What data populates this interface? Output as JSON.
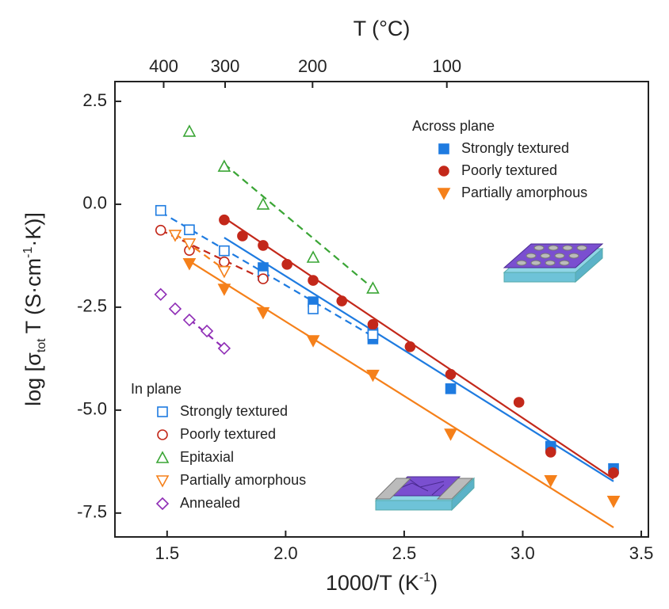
{
  "chart_data": {
    "type": "scatter",
    "xlabel": [
      {
        "text": "1000/T (K"
      },
      {
        "text": "-1",
        "shift": "super"
      },
      {
        "text": ")"
      }
    ],
    "ylabel": [
      {
        "text": "log [σ"
      },
      {
        "text": "tot",
        "shift": "sub"
      },
      {
        "text": "T (S·cm"
      },
      {
        "text": "-1",
        "shift": "super"
      },
      {
        "text": "·K)]"
      }
    ],
    "top_xlabel": "T (°C)",
    "top_xticks": [
      400,
      300,
      200,
      100
    ],
    "xlim": [
      1.28,
      3.53
    ],
    "ylim": [
      -8.08,
      2.98
    ],
    "xticks": [
      1.5,
      {
        "value": 2,
        "label": "2.0"
      },
      2.5,
      {
        "value": 3,
        "label": "3.0"
      },
      3.5
    ],
    "yticks": [
      2.5,
      {
        "value": 0,
        "label": "0.0"
      },
      -2.5,
      {
        "value": -5,
        "label": "-5.0"
      },
      -7.5
    ],
    "series_groups": [
      {
        "title": "Across plane",
        "legend_position": "upper right",
        "line_style": "solid",
        "series": [
          {
            "name": "Strongly textured",
            "color": "#1e7be0",
            "marker": "square",
            "filled": true,
            "x": [
              1.905,
              2.116,
              2.368,
              2.368,
              2.696,
              3.118,
              3.383
            ],
            "values": [
              -1.54,
              -2.37,
              -3.27,
              -3.12,
              -4.48,
              -5.88,
              -6.42
            ],
            "fit_x": [
              1.741,
              3.383
            ],
            "fit_y": [
              -0.81,
              -6.73
            ]
          },
          {
            "name": "Poorly textured",
            "color": "#c3281a",
            "marker": "circle",
            "filled": true,
            "x": [
              1.741,
              1.818,
              1.905,
              2.006,
              2.116,
              2.237,
              2.368,
              2.525,
              2.696,
              2.984,
              3.118,
              3.383
            ],
            "values": [
              -0.38,
              -0.77,
              -1.0,
              -1.46,
              -1.85,
              -2.35,
              -2.92,
              -3.46,
              -4.13,
              -4.81,
              -6.02,
              -6.52
            ],
            "fit_x": [
              1.741,
              3.383
            ],
            "fit_y": [
              -0.33,
              -6.67
            ]
          },
          {
            "name": "Partially amorphous",
            "color": "#f5801a",
            "marker": "triangle-down",
            "filled": true,
            "x": [
              1.594,
              1.741,
              1.905,
              2.116,
              2.368,
              2.696,
              3.118,
              3.383
            ],
            "values": [
              -1.44,
              -2.06,
              -2.63,
              -3.31,
              -4.15,
              -5.58,
              -6.71,
              -7.21
            ],
            "fit_x": [
              1.594,
              3.383
            ],
            "fit_y": [
              -1.38,
              -7.85
            ]
          }
        ]
      },
      {
        "title": "In plane",
        "legend_position": "lower left",
        "line_style": "dashed",
        "series": [
          {
            "name": "Strongly textured",
            "color": "#1e7be0",
            "marker": "square",
            "filled": false,
            "x": [
              1.473,
              1.594,
              1.741,
              1.905,
              2.116,
              2.368
            ],
            "values": [
              -0.15,
              -0.62,
              -1.13,
              -1.73,
              -2.54,
              -3.17
            ],
            "fit_x": [
              1.473,
              2.368
            ],
            "fit_y": [
              -0.19,
              -3.21
            ]
          },
          {
            "name": "Poorly textured",
            "color": "#c3281a",
            "marker": "circle",
            "filled": false,
            "x": [
              1.473,
              1.594,
              1.741,
              1.905
            ],
            "values": [
              -0.63,
              -1.12,
              -1.4,
              -1.81
            ],
            "fit_x": [
              1.473,
              1.905
            ],
            "fit_y": [
              -0.63,
              -1.81
            ]
          },
          {
            "name": "Epitaxial",
            "color": "#3aa535",
            "marker": "triangle-up",
            "filled": false,
            "x": [
              1.594,
              1.741,
              1.905,
              2.116,
              2.368
            ],
            "values": [
              1.77,
              0.92,
              0.0,
              -1.29,
              -2.04
            ],
            "fit_x": [
              1.741,
              2.368
            ],
            "fit_y": [
              0.98,
              -2.04
            ]
          },
          {
            "name": "Partially amorphous",
            "color": "#f5801a",
            "marker": "triangle-down",
            "filled": false,
            "x": [
              1.534,
              1.594,
              1.741
            ],
            "values": [
              -0.75,
              -0.96,
              -1.63
            ],
            "fit_x": [
              1.534,
              1.741
            ],
            "fit_y": [
              -0.72,
              -1.58
            ]
          },
          {
            "name": "Annealed",
            "color": "#8e2bb5",
            "marker": "diamond",
            "filled": false,
            "x": [
              1.473,
              1.534,
              1.594,
              1.668,
              1.741
            ],
            "values": [
              -2.19,
              -2.54,
              -2.81,
              -3.08,
              -3.5
            ],
            "fit_x": [
              1.594,
              1.741
            ],
            "fit_y": [
              -2.79,
              -3.5
            ]
          }
        ]
      }
    ]
  }
}
